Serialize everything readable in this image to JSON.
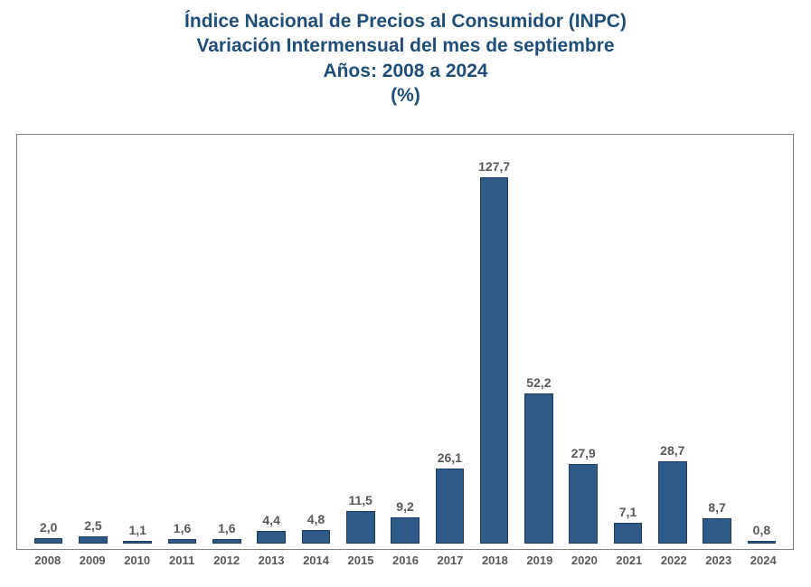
{
  "title": {
    "line1": "Índice Nacional de Precios al Consumidor (INPC)",
    "line2": "Variación Intermensual del mes de septiembre",
    "line3": "Años: 2008 a 2024",
    "line4": "(%)",
    "color": "#1f4e79",
    "fontsize": 21,
    "font_weight": "bold"
  },
  "chart": {
    "type": "bar",
    "categories": [
      "2008",
      "2009",
      "2010",
      "2011",
      "2012",
      "2013",
      "2014",
      "2015",
      "2016",
      "2017",
      "2018",
      "2019",
      "2020",
      "2021",
      "2022",
      "2023",
      "2024"
    ],
    "values": [
      2.0,
      2.5,
      1.1,
      1.6,
      1.6,
      4.4,
      4.8,
      11.5,
      9.2,
      26.1,
      127.7,
      52.2,
      27.9,
      7.1,
      28.7,
      8.7,
      0.8
    ],
    "value_labels": [
      "2,0",
      "2,5",
      "1,1",
      "1,6",
      "1,6",
      "4,4",
      "4,8",
      "11,5",
      "9,2",
      "26,1",
      "127,7",
      "52,2",
      "27,9",
      "7,1",
      "28,7",
      "8,7",
      "0,8"
    ],
    "y_max": 140,
    "bar_color": "#2e5a8a",
    "bar_border_color": "#1f3d5c",
    "border_color": "#7f7f7f",
    "background_color": "#ffffff",
    "value_label_fontsize": 14,
    "value_label_color": "#595959",
    "xaxis_label_fontsize": 13,
    "xaxis_label_color": "#595959",
    "bar_width_ratio": 0.64
  }
}
